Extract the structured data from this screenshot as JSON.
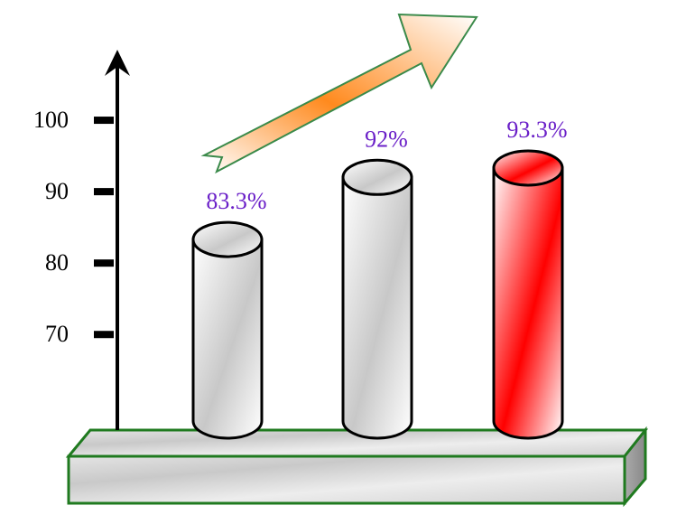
{
  "chart_data": {
    "type": "bar",
    "categories": [
      null,
      null,
      null
    ],
    "values": [
      83.3,
      92,
      93.3
    ],
    "value_labels": [
      "83.3%",
      "92%",
      "93.3%"
    ],
    "colors": [
      "#c8c8c8",
      "#c8c8c8",
      "#ff0000"
    ],
    "label_color": "#6a1fc8",
    "ylim": [
      57,
      110
    ],
    "yticks": [
      70,
      80,
      90,
      100
    ]
  }
}
